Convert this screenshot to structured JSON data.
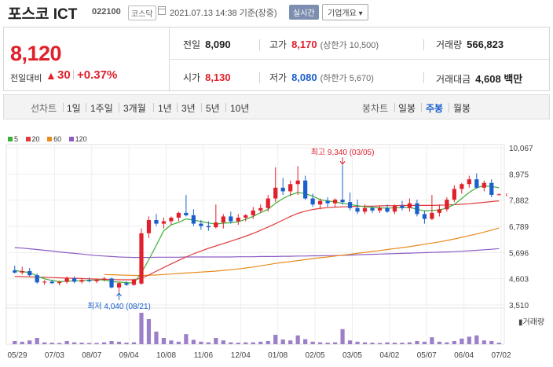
{
  "header": {
    "name": "포스코 ICT",
    "code": "022100",
    "market": "코스닥",
    "timestamp": "2021.07.13 14:38  기준(장중)",
    "realtime_label": "실시간",
    "info_button": "기업개요 ▾"
  },
  "quote": {
    "price": "8,120",
    "change_label": "전일대비",
    "change_value": "30",
    "change_pct": "+0.37%",
    "prev_close_label": "전일",
    "prev_close": "8,090",
    "high_label": "고가",
    "high": "8,170",
    "upper_limit": "(상한가 10,500)",
    "volume_label": "거래량",
    "volume": "566,823",
    "open_label": "시가",
    "open": "8,130",
    "low_label": "저가",
    "low": "8,080",
    "lower_limit": "(하한가 5,670)",
    "amount_label": "거래대금",
    "amount": "4,608 백만"
  },
  "tabs": {
    "line_label": "선차트",
    "line_items": [
      "1일",
      "1주일",
      "3개월",
      "1년",
      "3년",
      "5년",
      "10년"
    ],
    "candle_label": "봉차트",
    "candle_items": [
      "일봉",
      "주봉",
      "월봉"
    ],
    "selected_candle": "주봉"
  },
  "legend": [
    {
      "label": "5",
      "color": "#3cb034"
    },
    {
      "label": "20",
      "color": "#e03b3b"
    },
    {
      "label": "60",
      "color": "#e88a1c"
    },
    {
      "label": "120",
      "color": "#8d5cc4"
    }
  ],
  "chart_data": {
    "type": "candlestick",
    "y_ticks": [
      "10,067",
      "8,975",
      "7,882",
      "6,789",
      "5,696",
      "4,603",
      "3,510"
    ],
    "ylim": [
      3510,
      10067
    ],
    "x_ticks": [
      "05/29",
      "07/03",
      "08/07",
      "09/04",
      "10/08",
      "11/06",
      "12/04",
      "01/08",
      "02/05",
      "03/05",
      "04/02",
      "05/07",
      "06/04",
      "07/02"
    ],
    "high_annotation": "최고 9,340 (03/05)",
    "low_annotation": "최저 4,040 (08/21)",
    "volume_label": "거래량",
    "up_color": "#e0202b",
    "down_color": "#1a5fcc",
    "candles": [
      {
        "o": 4950,
        "h": 5150,
        "l": 4820,
        "c": 4860
      },
      {
        "o": 4860,
        "h": 5100,
        "l": 4780,
        "c": 4920
      },
      {
        "o": 4920,
        "h": 5050,
        "l": 4700,
        "c": 4750
      },
      {
        "o": 4750,
        "h": 4820,
        "l": 4400,
        "c": 4450
      },
      {
        "o": 4450,
        "h": 4550,
        "l": 4350,
        "c": 4480
      },
      {
        "o": 4480,
        "h": 4560,
        "l": 4380,
        "c": 4420
      },
      {
        "o": 4420,
        "h": 4520,
        "l": 4330,
        "c": 4470
      },
      {
        "o": 4470,
        "h": 4700,
        "l": 4400,
        "c": 4620
      },
      {
        "o": 4620,
        "h": 4700,
        "l": 4420,
        "c": 4480
      },
      {
        "o": 4480,
        "h": 4620,
        "l": 4400,
        "c": 4550
      },
      {
        "o": 4550,
        "h": 4650,
        "l": 4450,
        "c": 4500
      },
      {
        "o": 4500,
        "h": 4600,
        "l": 4420,
        "c": 4560
      },
      {
        "o": 4560,
        "h": 4680,
        "l": 4480,
        "c": 4610
      },
      {
        "o": 4610,
        "h": 4650,
        "l": 4200,
        "c": 4240
      },
      {
        "o": 4240,
        "h": 4480,
        "l": 4040,
        "c": 4420
      },
      {
        "o": 4420,
        "h": 4500,
        "l": 4300,
        "c": 4350
      },
      {
        "o": 4350,
        "h": 4600,
        "l": 4300,
        "c": 4560
      },
      {
        "o": 4400,
        "h": 6700,
        "l": 4350,
        "c": 6500
      },
      {
        "o": 6500,
        "h": 7200,
        "l": 6300,
        "c": 7050
      },
      {
        "o": 7050,
        "h": 7300,
        "l": 6800,
        "c": 6900
      },
      {
        "o": 6900,
        "h": 7150,
        "l": 6700,
        "c": 7000
      },
      {
        "o": 7000,
        "h": 7200,
        "l": 6850,
        "c": 7150
      },
      {
        "o": 7150,
        "h": 7400,
        "l": 7000,
        "c": 7350
      },
      {
        "o": 7350,
        "h": 8100,
        "l": 7200,
        "c": 7250
      },
      {
        "o": 7250,
        "h": 7500,
        "l": 6800,
        "c": 6900
      },
      {
        "o": 6900,
        "h": 7050,
        "l": 6650,
        "c": 6800
      },
      {
        "o": 6800,
        "h": 7000,
        "l": 6600,
        "c": 6750
      },
      {
        "o": 6750,
        "h": 7700,
        "l": 6700,
        "c": 6950
      },
      {
        "o": 6950,
        "h": 7300,
        "l": 6700,
        "c": 7200
      },
      {
        "o": 7200,
        "h": 7400,
        "l": 6900,
        "c": 7000
      },
      {
        "o": 7000,
        "h": 7300,
        "l": 6850,
        "c": 7150
      },
      {
        "o": 7150,
        "h": 7300,
        "l": 7000,
        "c": 7250
      },
      {
        "o": 7250,
        "h": 7600,
        "l": 7100,
        "c": 7450
      },
      {
        "o": 7450,
        "h": 7700,
        "l": 7350,
        "c": 7550
      },
      {
        "o": 7550,
        "h": 8100,
        "l": 7400,
        "c": 7950
      },
      {
        "o": 7950,
        "h": 9250,
        "l": 7800,
        "c": 8400
      },
      {
        "o": 8400,
        "h": 8800,
        "l": 8100,
        "c": 8250
      },
      {
        "o": 8250,
        "h": 8700,
        "l": 8050,
        "c": 8550
      },
      {
        "o": 8550,
        "h": 9300,
        "l": 8100,
        "c": 8700
      },
      {
        "o": 8700,
        "h": 8900,
        "l": 7900,
        "c": 7950
      },
      {
        "o": 7950,
        "h": 8150,
        "l": 7600,
        "c": 7700
      },
      {
        "o": 7700,
        "h": 7950,
        "l": 7500,
        "c": 7850
      },
      {
        "o": 7850,
        "h": 8000,
        "l": 7600,
        "c": 7750
      },
      {
        "o": 7750,
        "h": 7950,
        "l": 7600,
        "c": 7900
      },
      {
        "o": 7900,
        "h": 9340,
        "l": 7700,
        "c": 7800
      },
      {
        "o": 7800,
        "h": 8200,
        "l": 7450,
        "c": 7550
      },
      {
        "o": 7550,
        "h": 7900,
        "l": 7300,
        "c": 7400
      },
      {
        "o": 7400,
        "h": 7700,
        "l": 7300,
        "c": 7550
      },
      {
        "o": 7550,
        "h": 7650,
        "l": 7350,
        "c": 7450
      },
      {
        "o": 7450,
        "h": 7650,
        "l": 7350,
        "c": 7550
      },
      {
        "o": 7550,
        "h": 7700,
        "l": 7350,
        "c": 7400
      },
      {
        "o": 7400,
        "h": 7700,
        "l": 7300,
        "c": 7650
      },
      {
        "o": 7650,
        "h": 7850,
        "l": 7450,
        "c": 7550
      },
      {
        "o": 7550,
        "h": 7950,
        "l": 7400,
        "c": 7750
      },
      {
        "o": 7750,
        "h": 7900,
        "l": 7200,
        "c": 7300
      },
      {
        "o": 7300,
        "h": 7450,
        "l": 6900,
        "c": 7100
      },
      {
        "o": 7100,
        "h": 8100,
        "l": 7050,
        "c": 7350
      },
      {
        "o": 7350,
        "h": 7700,
        "l": 7200,
        "c": 7500
      },
      {
        "o": 7500,
        "h": 8000,
        "l": 7400,
        "c": 7900
      },
      {
        "o": 7900,
        "h": 8500,
        "l": 7800,
        "c": 8350
      },
      {
        "o": 8350,
        "h": 8600,
        "l": 8150,
        "c": 8550
      },
      {
        "o": 8550,
        "h": 8900,
        "l": 8400,
        "c": 8750
      },
      {
        "o": 8750,
        "h": 9000,
        "l": 8350,
        "c": 8400
      },
      {
        "o": 8400,
        "h": 8700,
        "l": 8250,
        "c": 8600
      },
      {
        "o": 8600,
        "h": 8750,
        "l": 8000,
        "c": 8100
      },
      {
        "o": 8090,
        "h": 8170,
        "l": 8080,
        "c": 8120
      }
    ],
    "ma5": [
      4950,
      4900,
      4860,
      4720,
      4600,
      4530,
      4480,
      4500,
      4510,
      4520,
      4540,
      4550,
      4560,
      4480,
      4460,
      4440,
      4420,
      4850,
      5400,
      6000,
      6600,
      6850,
      6950,
      7100,
      7050,
      6990,
      6930,
      6880,
      6920,
      6940,
      6980,
      7080,
      7200,
      7360,
      7500,
      7750,
      7950,
      8100,
      8200,
      8150,
      8050,
      7900,
      7850,
      7800,
      7750,
      7700,
      7650,
      7600,
      7580,
      7560,
      7550,
      7560,
      7570,
      7580,
      7500,
      7430,
      7450,
      7470,
      7550,
      7700,
      7950,
      8200,
      8400,
      8480,
      8450,
      8400
    ],
    "ma20": [
      4700,
      4690,
      4680,
      4670,
      4660,
      4650,
      4640,
      4630,
      4620,
      4610,
      4600,
      4590,
      4580,
      4570,
      4560,
      4560,
      4560,
      4620,
      4760,
      4920,
      5070,
      5220,
      5370,
      5510,
      5640,
      5760,
      5870,
      5970,
      6070,
      6170,
      6270,
      6380,
      6490,
      6620,
      6760,
      6900,
      7050,
      7200,
      7330,
      7420,
      7490,
      7540,
      7570,
      7590,
      7600,
      7610,
      7620,
      7630,
      7630,
      7640,
      7650,
      7650,
      7660,
      7660,
      7660,
      7660,
      7660,
      7670,
      7680,
      7690,
      7710,
      7730,
      7760,
      7790,
      7820,
      7850
    ],
    "ma60": [
      null,
      null,
      null,
      null,
      null,
      null,
      null,
      null,
      null,
      null,
      null,
      null,
      4780,
      4770,
      4760,
      4750,
      4740,
      4740,
      4750,
      4760,
      4780,
      4800,
      4820,
      4840,
      4860,
      4880,
      4900,
      4920,
      4950,
      4980,
      5010,
      5050,
      5090,
      5140,
      5190,
      5240,
      5280,
      5320,
      5360,
      5400,
      5440,
      5480,
      5510,
      5550,
      5590,
      5620,
      5660,
      5700,
      5740,
      5780,
      5820,
      5860,
      5900,
      5940,
      5990,
      6040,
      6090,
      6140,
      6200,
      6260,
      6330,
      6400,
      6470,
      6550,
      6630,
      6720
    ],
    "ma120": [
      5900,
      5880,
      5850,
      5820,
      5790,
      5760,
      5720,
      5690,
      5660,
      5630,
      5600,
      5570,
      5550,
      5530,
      5510,
      5500,
      5490,
      5490,
      5490,
      5500,
      5500,
      5500,
      5500,
      5510,
      5510,
      5510,
      5510,
      5510,
      5510,
      5510,
      5520,
      5520,
      5520,
      5530,
      5530,
      5530,
      5540,
      5540,
      5550,
      5550,
      5560,
      5560,
      5570,
      5570,
      5580,
      5590,
      5600,
      5610,
      5620,
      5630,
      5640,
      5650,
      5660,
      5670,
      5680,
      5690,
      5700,
      5710,
      5720,
      5730,
      5750,
      5770,
      5790,
      5810,
      5830,
      5860
    ],
    "volume": [
      0.1,
      0.08,
      0.12,
      0.2,
      0.06,
      0.05,
      0.04,
      0.1,
      0.06,
      0.05,
      0.04,
      0.04,
      0.06,
      0.1,
      0.08,
      0.05,
      0.06,
      1.0,
      0.8,
      0.4,
      0.2,
      0.12,
      0.08,
      0.32,
      0.14,
      0.08,
      0.06,
      0.2,
      0.12,
      0.06,
      0.05,
      0.06,
      0.06,
      0.08,
      0.1,
      0.3,
      0.15,
      0.12,
      0.28,
      0.16,
      0.08,
      0.06,
      0.05,
      0.06,
      0.48,
      0.12,
      0.08,
      0.06,
      0.05,
      0.04,
      0.06,
      0.05,
      0.05,
      0.06,
      0.1,
      0.08,
      0.22,
      0.08,
      0.06,
      0.1,
      0.18,
      0.24,
      0.28,
      0.12,
      0.1,
      0.05
    ]
  }
}
